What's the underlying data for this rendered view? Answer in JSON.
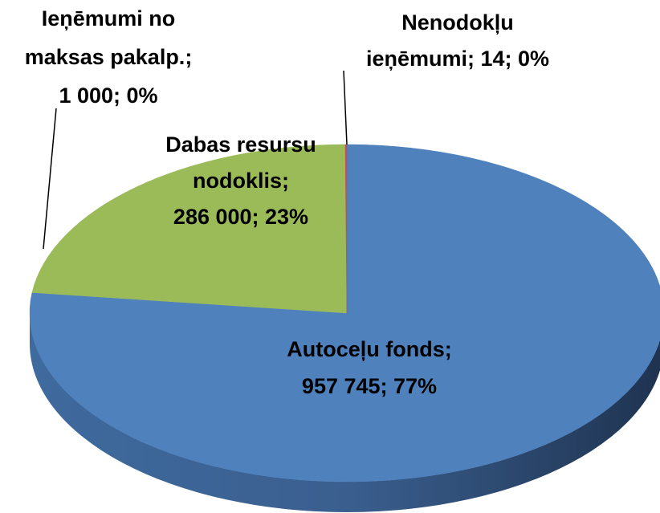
{
  "chart_data": {
    "type": "pie3d",
    "values": [
      957745,
      286000,
      1000,
      14
    ],
    "value_labels": [
      [
        "Autoceļu fonds;",
        "957 745; 77%"
      ],
      [
        "Dabas resursu",
        "nodoklis;",
        "286 000; 23%"
      ],
      [
        "Ieņēmumi no",
        "maksas pakalp.;",
        "1 000; 0%"
      ],
      [
        "Nenodokļu",
        "ieņēmumi; 14; 0%"
      ]
    ],
    "colors": [
      "#4f81bd",
      "#9bbb59",
      "#c0504d",
      "#8064a2"
    ]
  }
}
